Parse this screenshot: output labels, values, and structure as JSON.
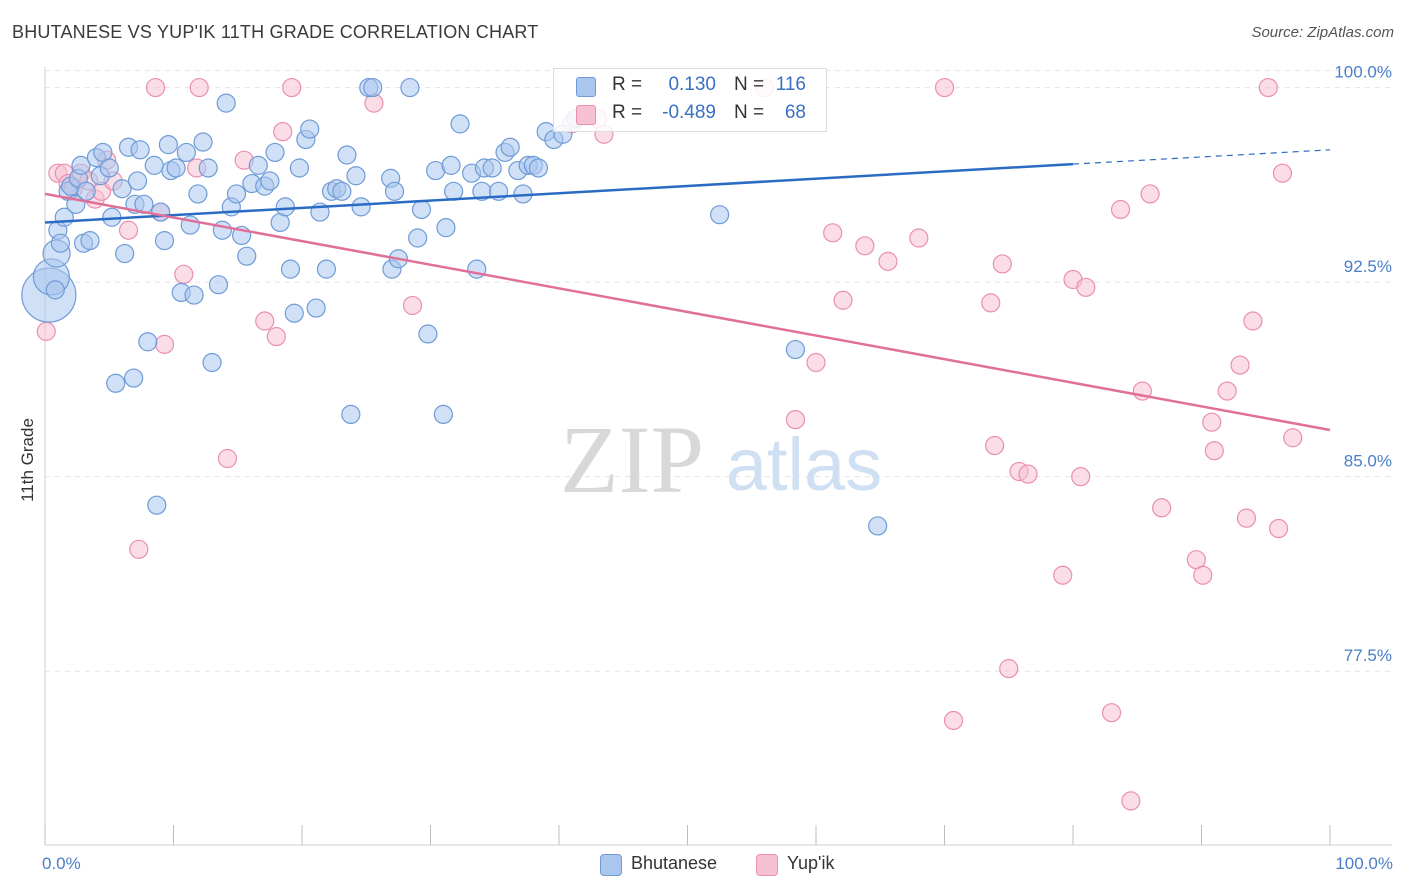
{
  "title": "BHUTANESE VS YUP'IK 11TH GRADE CORRELATION CHART",
  "source": "Source: ZipAtlas.com",
  "watermark": {
    "zip": "ZIP",
    "atlas": "atlas"
  },
  "legend": {
    "rows": [
      {
        "r_label": "R =",
        "r_value": "0.130",
        "n_label": "N =",
        "n_value": "116"
      },
      {
        "r_label": "R =",
        "r_value": "-0.489",
        "n_label": "N =",
        "n_value": "68"
      }
    ]
  },
  "bottom_legend": [
    "Bhutanese",
    "Yup'ik"
  ],
  "colors": {
    "bhutanese_fill": "#a9c6ee",
    "bhutanese_stroke": "#6f9bd6",
    "bhutanese_line": "#2a6bc4",
    "yupik_fill": "#f6c1d3",
    "yupik_stroke": "#ea8fb0",
    "yupik_line": "#e0709a",
    "tick_text": "#4a7ec9",
    "grid": "#e3e3e3"
  },
  "chart_data": {
    "type": "scatter",
    "title": "BHUTANESE VS YUP'IK 11TH GRADE CORRELATION CHART",
    "ylabel": "11th Grade",
    "xlabel": "",
    "xlim": [
      0,
      100
    ],
    "ylim": [
      70.8,
      100.6
    ],
    "x_tick_labels": [
      "0.0%",
      "100.0%"
    ],
    "y_ticks": [
      100.0,
      92.5,
      85.0,
      77.5
    ],
    "y_tick_labels": [
      "100.0%",
      "92.5%",
      "85.0%",
      "77.5%"
    ],
    "grid": true,
    "legend_position": "top-center",
    "series": [
      {
        "name": "Bhutanese",
        "R": 0.13,
        "N": 116,
        "trend": {
          "x": [
            0,
            80
          ],
          "y": [
            94.8,
            97.05
          ],
          "dashed_to": [
            100,
            97.6
          ]
        },
        "points": [
          [
            0.3,
            92.0,
            3
          ],
          [
            0.5,
            92.7,
            2
          ],
          [
            0.8,
            92.2,
            1
          ],
          [
            0.9,
            93.6,
            1.5
          ],
          [
            1.0,
            94.5,
            1
          ],
          [
            1.2,
            94.0,
            1
          ],
          [
            1.5,
            95.0,
            1
          ],
          [
            1.8,
            96.0,
            1
          ],
          [
            2.0,
            96.2,
            1
          ],
          [
            2.4,
            95.5,
            1
          ],
          [
            2.6,
            96.5,
            1
          ],
          [
            2.8,
            97.0,
            1
          ],
          [
            3.0,
            94.0,
            1
          ],
          [
            3.2,
            96.0,
            1
          ],
          [
            3.5,
            94.1,
            1
          ],
          [
            4.0,
            97.3,
            1
          ],
          [
            4.3,
            96.6,
            1
          ],
          [
            4.5,
            97.5,
            1
          ],
          [
            5.0,
            96.9,
            1
          ],
          [
            5.2,
            95.0,
            1
          ],
          [
            5.5,
            88.6,
            1
          ],
          [
            6.0,
            96.1,
            1
          ],
          [
            6.2,
            93.6,
            1
          ],
          [
            6.5,
            97.7,
            1
          ],
          [
            6.9,
            88.8,
            1
          ],
          [
            7.0,
            95.5,
            1
          ],
          [
            7.2,
            96.4,
            1
          ],
          [
            7.4,
            97.6,
            1
          ],
          [
            7.7,
            95.5,
            1
          ],
          [
            8.0,
            90.2,
            1
          ],
          [
            8.5,
            97.0,
            1
          ],
          [
            8.7,
            83.9,
            1
          ],
          [
            9.0,
            95.2,
            1
          ],
          [
            9.3,
            94.1,
            1
          ],
          [
            9.6,
            97.8,
            1
          ],
          [
            9.8,
            96.8,
            1
          ],
          [
            10.2,
            96.9,
            1
          ],
          [
            10.6,
            92.1,
            1
          ],
          [
            11.0,
            97.5,
            1
          ],
          [
            11.3,
            94.7,
            1
          ],
          [
            11.6,
            92.0,
            1
          ],
          [
            11.9,
            95.9,
            1
          ],
          [
            12.3,
            97.9,
            1
          ],
          [
            12.7,
            96.9,
            1
          ],
          [
            13.0,
            89.4,
            1
          ],
          [
            13.5,
            92.4,
            1
          ],
          [
            13.8,
            94.5,
            1
          ],
          [
            14.1,
            99.4,
            1
          ],
          [
            14.5,
            95.4,
            1
          ],
          [
            14.9,
            95.9,
            1
          ],
          [
            15.3,
            94.3,
            1
          ],
          [
            15.7,
            93.5,
            1
          ],
          [
            16.1,
            96.3,
            1
          ],
          [
            16.6,
            97.0,
            1
          ],
          [
            17.1,
            96.2,
            1
          ],
          [
            17.5,
            96.4,
            1
          ],
          [
            17.9,
            97.5,
            1
          ],
          [
            18.3,
            94.8,
            1
          ],
          [
            18.7,
            95.4,
            1
          ],
          [
            19.1,
            93.0,
            1
          ],
          [
            19.4,
            91.3,
            1
          ],
          [
            19.8,
            96.9,
            1
          ],
          [
            20.3,
            98.0,
            1
          ],
          [
            20.6,
            98.4,
            1
          ],
          [
            21.1,
            91.5,
            1
          ],
          [
            21.4,
            95.2,
            1
          ],
          [
            21.9,
            93.0,
            1
          ],
          [
            22.3,
            96.0,
            1
          ],
          [
            22.7,
            96.1,
            1
          ],
          [
            23.1,
            96.0,
            1
          ],
          [
            23.5,
            97.4,
            1
          ],
          [
            23.8,
            87.4,
            1
          ],
          [
            24.2,
            96.6,
            1
          ],
          [
            24.6,
            95.4,
            1
          ],
          [
            25.2,
            100.0,
            1
          ],
          [
            25.5,
            100.0,
            1
          ],
          [
            26.9,
            96.5,
            1
          ],
          [
            27.2,
            96.0,
            1
          ],
          [
            27.0,
            93.0,
            1
          ],
          [
            27.5,
            93.4,
            1
          ],
          [
            28.4,
            100.0,
            1
          ],
          [
            29.0,
            94.2,
            1
          ],
          [
            29.3,
            95.3,
            1
          ],
          [
            29.8,
            90.5,
            1
          ],
          [
            30.4,
            96.8,
            1
          ],
          [
            31.0,
            87.4,
            1
          ],
          [
            31.2,
            94.6,
            1
          ],
          [
            31.6,
            97.0,
            1
          ],
          [
            31.8,
            96.0,
            1
          ],
          [
            32.3,
            98.6,
            1
          ],
          [
            33.2,
            96.7,
            1
          ],
          [
            33.6,
            93.0,
            1
          ],
          [
            34.0,
            96.0,
            1
          ],
          [
            34.2,
            96.9,
            1
          ],
          [
            34.8,
            96.9,
            1
          ],
          [
            35.3,
            96.0,
            1
          ],
          [
            35.8,
            97.5,
            1
          ],
          [
            36.2,
            97.7,
            1
          ],
          [
            36.8,
            96.8,
            1
          ],
          [
            37.2,
            95.9,
            1
          ],
          [
            37.6,
            97.0,
            1
          ],
          [
            38.0,
            97.0,
            1
          ],
          [
            38.4,
            96.9,
            1
          ],
          [
            39.0,
            98.3,
            1
          ],
          [
            39.6,
            98.0,
            1
          ],
          [
            40.3,
            98.2,
            1
          ],
          [
            41.3,
            98.8,
            1
          ],
          [
            52.5,
            95.1,
            1
          ],
          [
            58.4,
            89.9,
            1
          ],
          [
            64.8,
            83.1,
            1
          ]
        ]
      },
      {
        "name": "Yup'ik",
        "R": -0.489,
        "N": 68,
        "trend": {
          "x": [
            0,
            100
          ],
          "y": [
            95.9,
            86.8
          ]
        },
        "points": [
          [
            0.1,
            90.6,
            1
          ],
          [
            1.0,
            96.7,
            1
          ],
          [
            1.5,
            96.7,
            1
          ],
          [
            1.8,
            96.3,
            1
          ],
          [
            2.2,
            96.1,
            1
          ],
          [
            2.8,
            96.7,
            1
          ],
          [
            3.4,
            96.4,
            1
          ],
          [
            3.9,
            95.7,
            1
          ],
          [
            4.4,
            96.0,
            1
          ],
          [
            4.8,
            97.2,
            1
          ],
          [
            5.3,
            96.4,
            1
          ],
          [
            6.5,
            94.5,
            1
          ],
          [
            7.3,
            82.2,
            1
          ],
          [
            8.6,
            100.0,
            1
          ],
          [
            9.0,
            95.2,
            1
          ],
          [
            9.3,
            90.1,
            1
          ],
          [
            10.8,
            92.8,
            1
          ],
          [
            11.8,
            96.9,
            1
          ],
          [
            12.0,
            100.0,
            1
          ],
          [
            14.2,
            85.7,
            1
          ],
          [
            15.5,
            97.2,
            1
          ],
          [
            17.1,
            91.0,
            1
          ],
          [
            18.0,
            90.4,
            1
          ],
          [
            18.5,
            98.3,
            1
          ],
          [
            19.2,
            100.0,
            1
          ],
          [
            25.6,
            99.4,
            1
          ],
          [
            28.6,
            91.6,
            1
          ],
          [
            41.0,
            98.6,
            1
          ],
          [
            43.0,
            98.8,
            1
          ],
          [
            43.5,
            98.2,
            1
          ],
          [
            56.0,
            100.0,
            1
          ],
          [
            58.4,
            87.2,
            1
          ],
          [
            60.0,
            89.4,
            1
          ],
          [
            61.3,
            94.4,
            1
          ],
          [
            62.1,
            91.8,
            1
          ],
          [
            63.8,
            93.9,
            1
          ],
          [
            65.6,
            93.3,
            1
          ],
          [
            68.0,
            94.2,
            1
          ],
          [
            70.0,
            100.0,
            1
          ],
          [
            70.7,
            75.6,
            1
          ],
          [
            73.6,
            91.7,
            1
          ],
          [
            73.9,
            86.2,
            1
          ],
          [
            74.5,
            93.2,
            1
          ],
          [
            75.0,
            77.6,
            1
          ],
          [
            75.8,
            85.2,
            1
          ],
          [
            76.5,
            85.1,
            1
          ],
          [
            79.2,
            81.2,
            1
          ],
          [
            80.0,
            92.6,
            1
          ],
          [
            80.6,
            85.0,
            1
          ],
          [
            81.0,
            92.3,
            1
          ],
          [
            83.0,
            75.9,
            1
          ],
          [
            83.7,
            95.3,
            1
          ],
          [
            84.5,
            72.5,
            1
          ],
          [
            85.4,
            88.3,
            1
          ],
          [
            86.0,
            95.9,
            1
          ],
          [
            86.9,
            83.8,
            1
          ],
          [
            89.6,
            81.8,
            1
          ],
          [
            90.1,
            81.2,
            1
          ],
          [
            90.8,
            87.1,
            1
          ],
          [
            91.0,
            86.0,
            1
          ],
          [
            92.0,
            88.3,
            1
          ],
          [
            93.0,
            89.3,
            1
          ],
          [
            93.5,
            83.4,
            1
          ],
          [
            94.0,
            91.0,
            1
          ],
          [
            95.2,
            100.0,
            1
          ],
          [
            96.3,
            96.7,
            1
          ],
          [
            96.0,
            83.0,
            1
          ],
          [
            97.1,
            86.5,
            1
          ]
        ]
      }
    ]
  }
}
